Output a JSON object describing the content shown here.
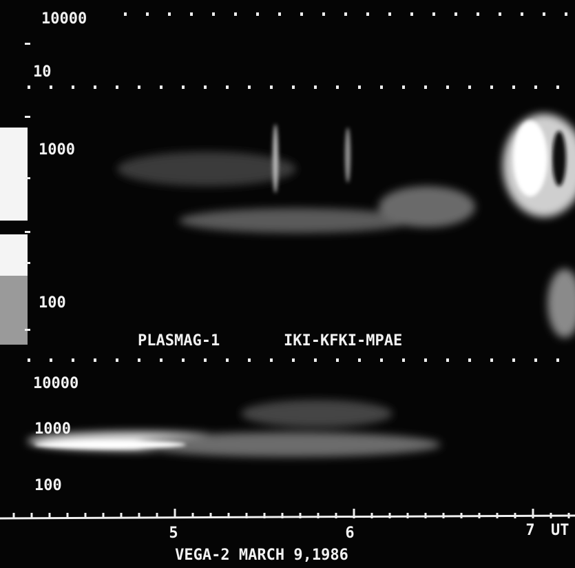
{
  "panels": [
    {
      "ticks": [
        10000,
        10
      ]
    },
    {
      "ticks": [
        1000,
        100
      ]
    },
    {
      "ticks": [
        10000,
        1000,
        100
      ]
    }
  ],
  "instrument": "PLASMAG-1",
  "institutes": "IKI-KFKI-MPAE",
  "time_axis": {
    "ticks": [
      5,
      6,
      7
    ],
    "unit": "UT"
  },
  "caption": "VEGA-2 MARCH 9,1986"
}
